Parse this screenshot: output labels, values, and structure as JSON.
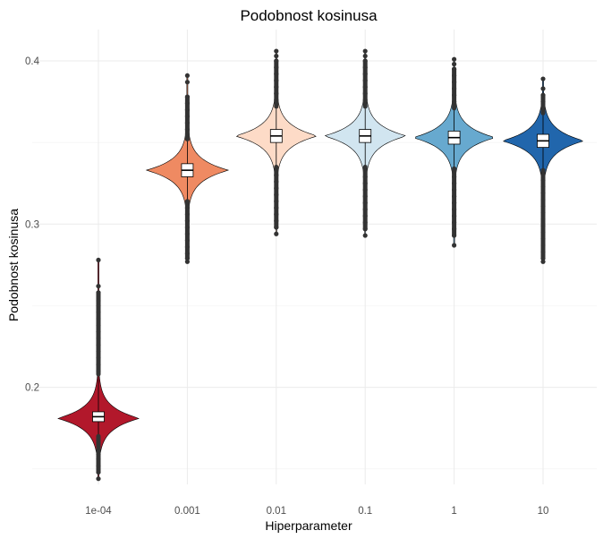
{
  "chart_data": {
    "type": "violin",
    "title": "Podobnost kosinusa",
    "xlabel": "Hiperparameter",
    "ylabel": "Podobnost kosinusa",
    "ylim": [
      0.14,
      0.42
    ],
    "yticks": [
      0.2,
      0.3,
      0.4
    ],
    "yticklabels": [
      "0.2",
      "0.3",
      "0.4"
    ],
    "grid": true,
    "legend": "none",
    "categories": [
      "1e-04",
      "0.001",
      "0.01",
      "0.1",
      "1",
      "10"
    ],
    "series": [
      {
        "category": "1e-04",
        "color": "#b2182b",
        "min": 0.144,
        "q1": 0.179,
        "median": 0.182,
        "q3": 0.185,
        "max": 0.278,
        "whisker_low": 0.17,
        "whisker_high": 0.208,
        "density_peak": 0.181,
        "density_halfwidth": 0.007,
        "outliers": [
          0.144,
          0.148,
          0.152,
          0.156,
          0.159,
          0.162,
          0.164,
          0.166,
          0.168,
          0.21,
          0.214,
          0.218,
          0.222,
          0.226,
          0.23,
          0.234,
          0.238,
          0.242,
          0.246,
          0.25,
          0.253,
          0.258,
          0.262,
          0.278
        ]
      },
      {
        "category": "0.001",
        "color": "#ef8a62",
        "min": 0.277,
        "q1": 0.329,
        "median": 0.333,
        "q3": 0.337,
        "max": 0.391,
        "whisker_low": 0.314,
        "whisker_high": 0.352,
        "density_peak": 0.333,
        "density_halfwidth": 0.007,
        "outliers": [
          0.277,
          0.279,
          0.282,
          0.286,
          0.29,
          0.294,
          0.298,
          0.302,
          0.306,
          0.31,
          0.355,
          0.358,
          0.362,
          0.366,
          0.37,
          0.374,
          0.378,
          0.387,
          0.391
        ]
      },
      {
        "category": "0.01",
        "color": "#fddbc7",
        "min": 0.294,
        "q1": 0.35,
        "median": 0.354,
        "q3": 0.358,
        "max": 0.406,
        "whisker_low": 0.335,
        "whisker_high": 0.372,
        "density_peak": 0.354,
        "density_halfwidth": 0.007,
        "outliers": [
          0.294,
          0.298,
          0.302,
          0.306,
          0.31,
          0.314,
          0.318,
          0.322,
          0.326,
          0.33,
          0.376,
          0.38,
          0.384,
          0.388,
          0.392,
          0.396,
          0.4,
          0.403,
          0.406
        ]
      },
      {
        "category": "0.1",
        "color": "#d1e5f0",
        "min": 0.293,
        "q1": 0.35,
        "median": 0.354,
        "q3": 0.358,
        "max": 0.406,
        "whisker_low": 0.335,
        "whisker_high": 0.372,
        "density_peak": 0.354,
        "density_halfwidth": 0.007,
        "outliers": [
          0.293,
          0.297,
          0.301,
          0.305,
          0.309,
          0.313,
          0.317,
          0.321,
          0.325,
          0.329,
          0.376,
          0.38,
          0.384,
          0.388,
          0.392,
          0.396,
          0.4,
          0.403,
          0.406
        ]
      },
      {
        "category": "1",
        "color": "#67a9cf",
        "min": 0.287,
        "q1": 0.349,
        "median": 0.353,
        "q3": 0.357,
        "max": 0.401,
        "whisker_low": 0.334,
        "whisker_high": 0.371,
        "density_peak": 0.353,
        "density_halfwidth": 0.007,
        "outliers": [
          0.287,
          0.293,
          0.297,
          0.301,
          0.305,
          0.309,
          0.313,
          0.317,
          0.321,
          0.325,
          0.329,
          0.375,
          0.379,
          0.383,
          0.387,
          0.391,
          0.395,
          0.398,
          0.401
        ]
      },
      {
        "category": "10",
        "color": "#2166ac",
        "min": 0.277,
        "q1": 0.347,
        "median": 0.351,
        "q3": 0.355,
        "max": 0.389,
        "whisker_low": 0.333,
        "whisker_high": 0.368,
        "density_peak": 0.351,
        "density_halfwidth": 0.007,
        "outliers": [
          0.277,
          0.279,
          0.283,
          0.287,
          0.291,
          0.295,
          0.299,
          0.303,
          0.307,
          0.311,
          0.315,
          0.319,
          0.323,
          0.327,
          0.371,
          0.375,
          0.379,
          0.383,
          0.389
        ]
      }
    ]
  }
}
